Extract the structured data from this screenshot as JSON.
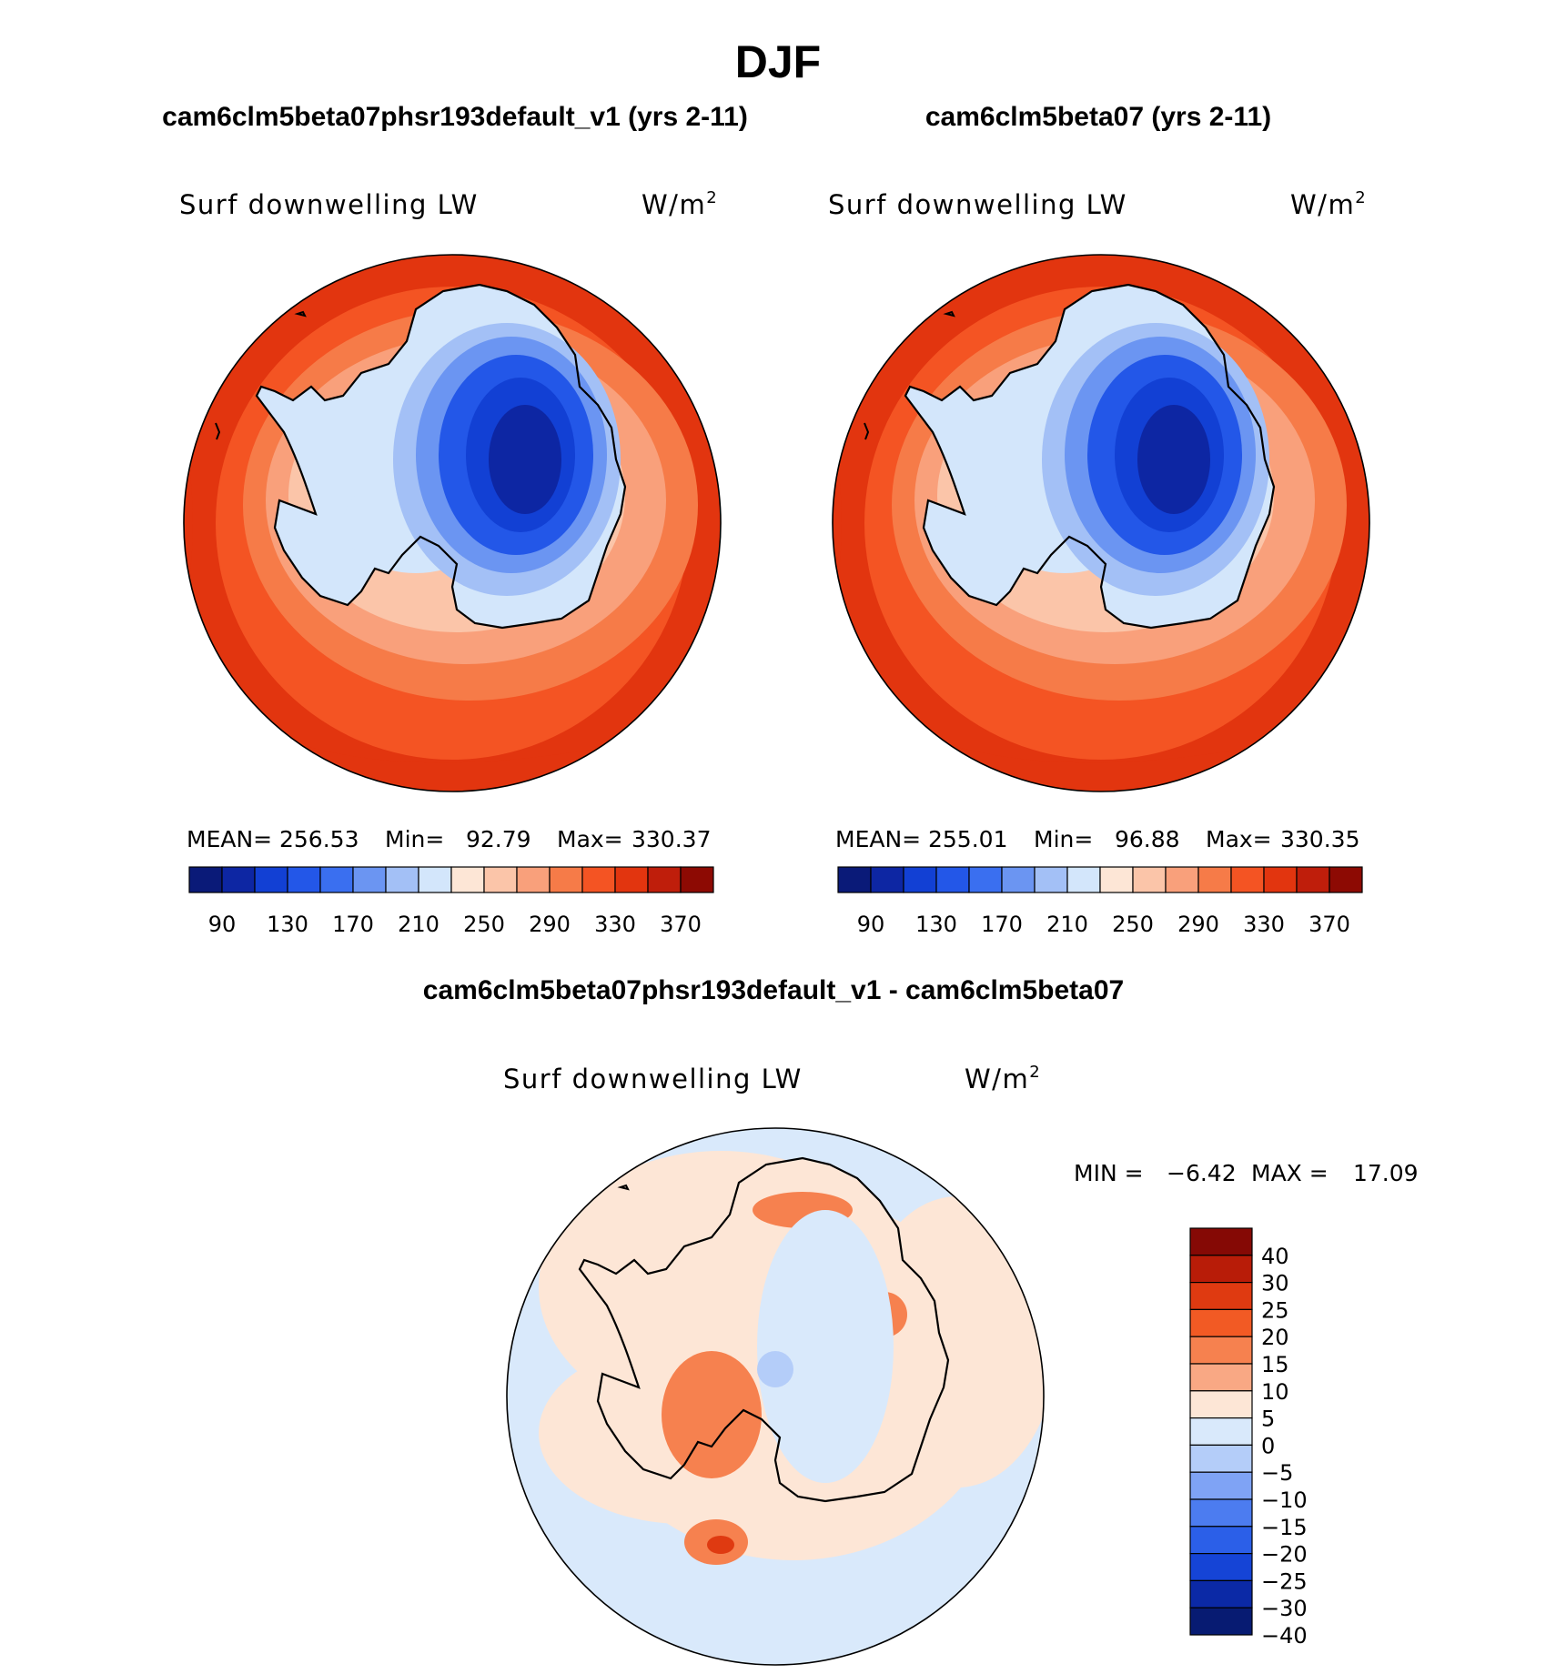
{
  "chart_data": {
    "type": "heatmap",
    "title": "DJF",
    "projection": "south-polar-stereographic",
    "panels": [
      {
        "case_title": "cam6clm5beta07phsr193default_v1 (yrs 2-11)",
        "variable": "Surf downwelling LW",
        "units_base": "W/m",
        "units_exp": "2",
        "stats": {
          "mean_label": "MEAN=",
          "mean": "256.53",
          "min_label": "Min=",
          "min": "92.79",
          "max_label": "Max=",
          "max": "330.37"
        },
        "levels": [
          "90",
          "130",
          "170",
          "210",
          "250",
          "290",
          "330",
          "370"
        ],
        "field": {
          "ocean_north": 320,
          "ocean_mid": 305,
          "ice_edge": 280,
          "coast": 250,
          "peninsula": 225,
          "ross_shelf": 240,
          "plateau_edge": 175,
          "plateau": 135,
          "interior": 95
        }
      },
      {
        "case_title": "cam6clm5beta07 (yrs 2-11)",
        "variable": "Surf downwelling LW",
        "units_base": "W/m",
        "units_exp": "2",
        "stats": {
          "mean_label": "MEAN=",
          "mean": "255.01",
          "min_label": "Min=",
          "min": "96.88",
          "max_label": "Max=",
          "max": "330.35"
        },
        "levels": [
          "90",
          "130",
          "170",
          "210",
          "250",
          "290",
          "330",
          "370"
        ],
        "field": {
          "ocean_north": 320,
          "ocean_mid": 305,
          "ice_edge": 280,
          "coast": 250,
          "peninsula": 225,
          "ross_shelf": 240,
          "plateau_edge": 175,
          "plateau": 135,
          "interior": 100
        }
      }
    ],
    "difference": {
      "case_title": "cam6clm5beta07phsr193default_v1 - cam6clm5beta07",
      "variable": "Surf downwelling LW",
      "units_base": "W/m",
      "units_exp": "2",
      "min_label": "MIN =",
      "min": "−6.42",
      "max_label": "MAX =",
      "max": "17.09",
      "levels": [
        "40",
        "30",
        "25",
        "20",
        "15",
        "10",
        "5",
        "0",
        "−5",
        "−10",
        "−15",
        "−20",
        "−25",
        "−30",
        "−40"
      ],
      "field": {
        "ocean": 1,
        "coast": 6,
        "peninsula": 8,
        "plateau": -2,
        "hotspot": 15,
        "interior_low": -6
      }
    },
    "colorbar_colors": [
      "#0a1a78",
      "#0d26a3",
      "#1240d4",
      "#2357e8",
      "#3a6ff0",
      "#6b95f2",
      "#a3c0f6",
      "#d3e6fb",
      "#fde6d6",
      "#fbc5a9",
      "#f9a07b",
      "#f67b48",
      "#f45423",
      "#e2350f",
      "#bf1e0b",
      "#8d0a03"
    ],
    "diff_colors": [
      "#071b72",
      "#0b29a6",
      "#1544d6",
      "#2b5fe8",
      "#4c7cf0",
      "#7fa3f5",
      "#b4cdf9",
      "#d9e9fb",
      "#fde6d6",
      "#f9a884",
      "#f6814f",
      "#f25a24",
      "#df3a11",
      "#b81c08",
      "#850905"
    ]
  }
}
